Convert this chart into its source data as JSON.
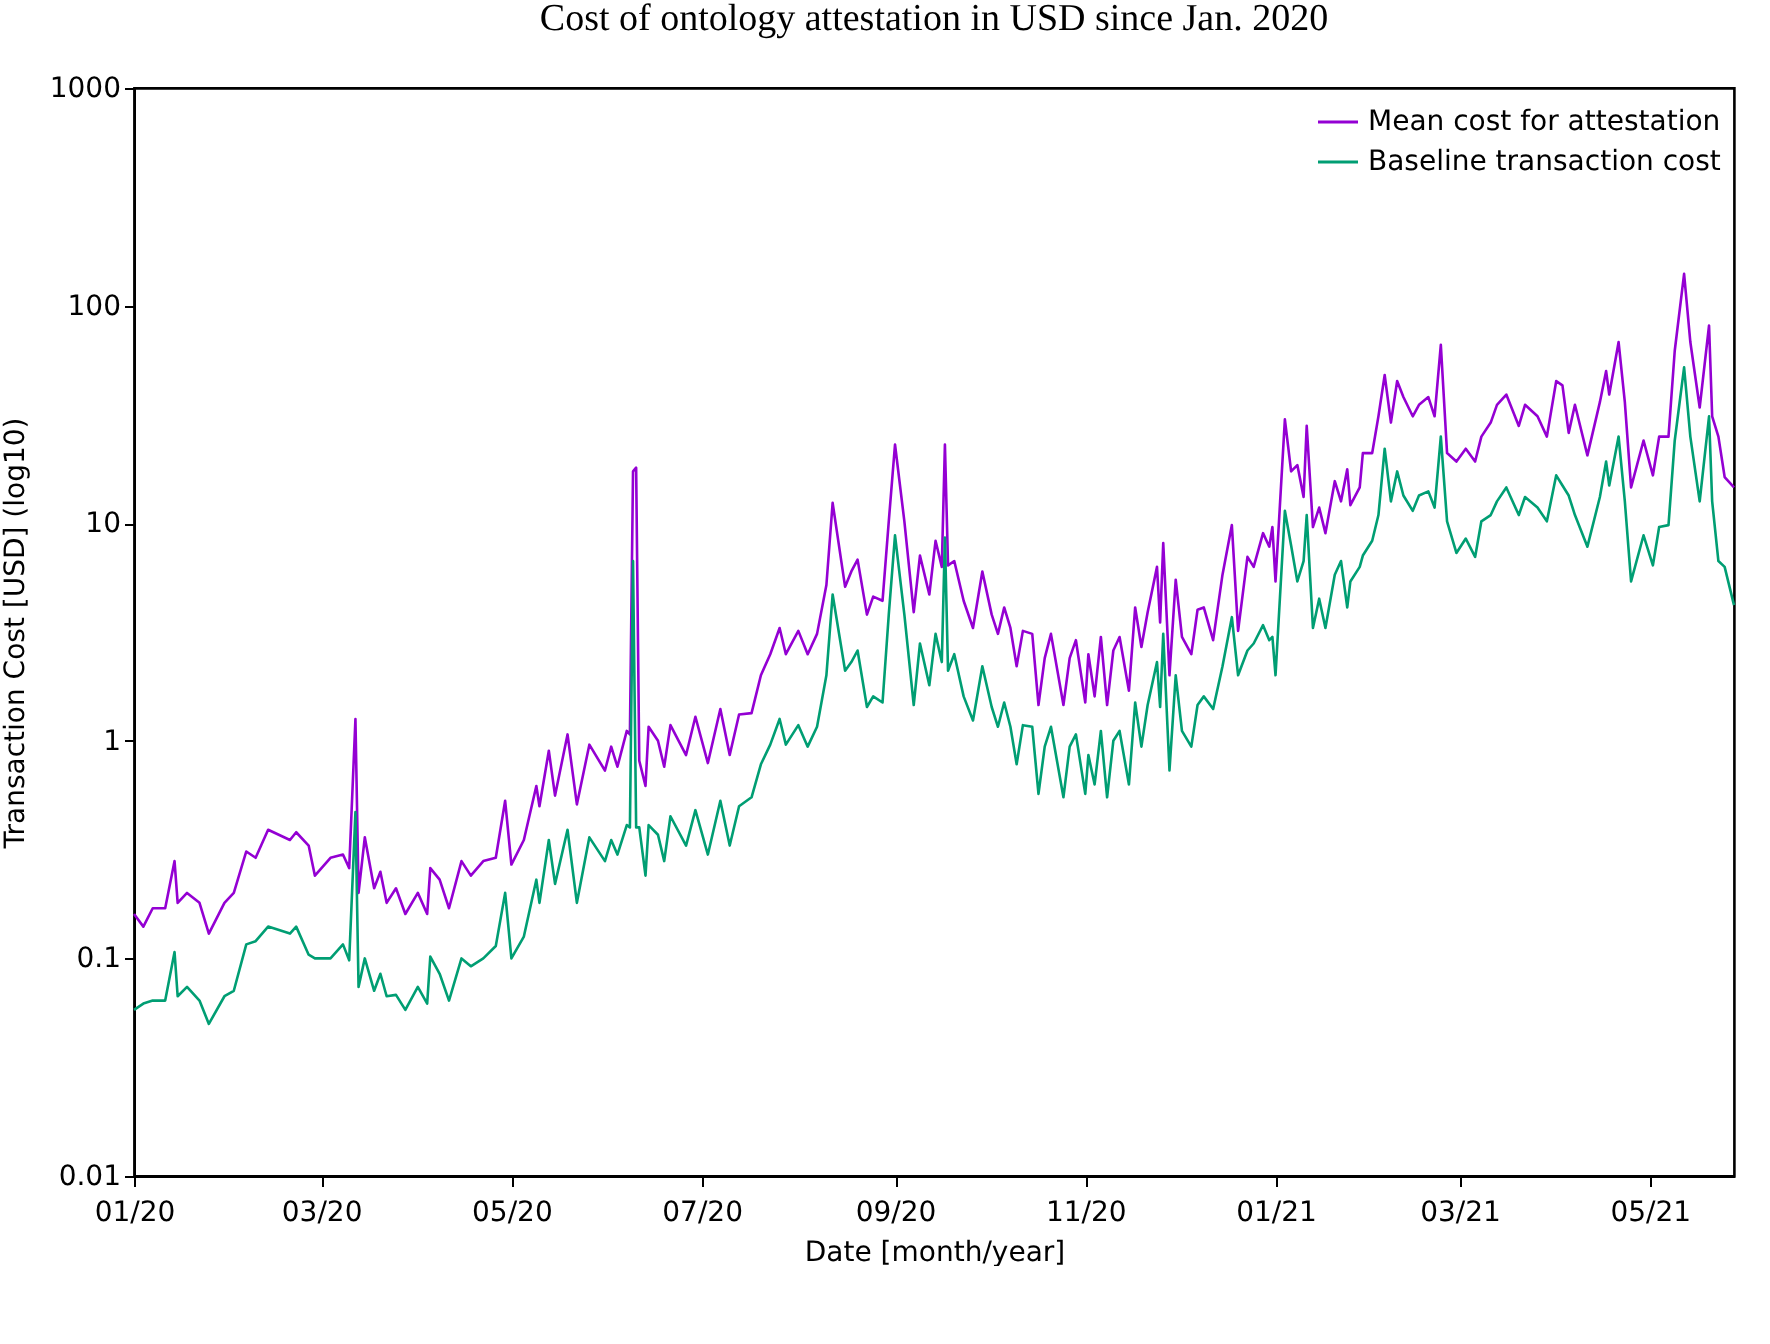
{
  "chart_data": {
    "type": "line",
    "title": "Cost of ontology attestation in USD since Jan. 2020",
    "xlabel": "Date [month/year]",
    "ylabel": "Transaction Cost [USD] (log10)",
    "log": "y",
    "legend": "top right",
    "xlim": [
      "2020-01-01",
      "2021-05-28"
    ],
    "xticks": [
      {
        "value": "2020-01-01",
        "label": "01/20"
      },
      {
        "value": "2020-03-01",
        "label": "03/20"
      },
      {
        "value": "2020-05-01",
        "label": "05/20"
      },
      {
        "value": "2020-07-01",
        "label": "07/20"
      },
      {
        "value": "2020-09-01",
        "label": "09/20"
      },
      {
        "value": "2020-11-01",
        "label": "11/20"
      },
      {
        "value": "2021-01-01",
        "label": "01/21"
      },
      {
        "value": "2021-03-01",
        "label": "03/21"
      },
      {
        "value": "2021-05-01",
        "label": "05/21"
      }
    ],
    "ylim": [
      0.01,
      1000
    ],
    "yticks": [
      0.01,
      0.1,
      1,
      10,
      100,
      1000
    ],
    "x": [
      "2020-01-01",
      "2020-01-04",
      "2020-01-07",
      "2020-01-11",
      "2020-01-14",
      "2020-01-15",
      "2020-01-18",
      "2020-01-22",
      "2020-01-25",
      "2020-01-30",
      "2020-02-02",
      "2020-02-06",
      "2020-02-09",
      "2020-02-13",
      "2020-02-20",
      "2020-02-22",
      "2020-02-26",
      "2020-02-28",
      "2020-03-04",
      "2020-03-08",
      "2020-03-10",
      "2020-03-12",
      "2020-03-13",
      "2020-03-15",
      "2020-03-18",
      "2020-03-20",
      "2020-03-22",
      "2020-03-25",
      "2020-03-28",
      "2020-04-01",
      "2020-04-04",
      "2020-04-05",
      "2020-04-08",
      "2020-04-11",
      "2020-04-15",
      "2020-04-18",
      "2020-04-22",
      "2020-04-26",
      "2020-04-29",
      "2020-05-01",
      "2020-05-05",
      "2020-05-09",
      "2020-05-10",
      "2020-05-13",
      "2020-05-15",
      "2020-05-19",
      "2020-05-22",
      "2020-05-26",
      "2020-05-31",
      "2020-06-02",
      "2020-06-04",
      "2020-06-07",
      "2020-06-08",
      "2020-06-09",
      "2020-06-10",
      "2020-06-11",
      "2020-06-13",
      "2020-06-14",
      "2020-06-17",
      "2020-06-19",
      "2020-06-21",
      "2020-06-26",
      "2020-06-29",
      "2020-07-03",
      "2020-07-07",
      "2020-07-10",
      "2020-07-13",
      "2020-07-17",
      "2020-07-20",
      "2020-07-23",
      "2020-07-26",
      "2020-07-28",
      "2020-08-01",
      "2020-08-04",
      "2020-08-07",
      "2020-08-10",
      "2020-08-12",
      "2020-08-16",
      "2020-08-18",
      "2020-08-20",
      "2020-08-23",
      "2020-08-25",
      "2020-08-28",
      "2020-08-30",
      "2020-09-01",
      "2020-09-04",
      "2020-09-07",
      "2020-09-09",
      "2020-09-12",
      "2020-09-14",
      "2020-09-16",
      "2020-09-17",
      "2020-09-18",
      "2020-09-20",
      "2020-09-23",
      "2020-09-26",
      "2020-09-29",
      "2020-10-02",
      "2020-10-04",
      "2020-10-06",
      "2020-10-08",
      "2020-10-10",
      "2020-10-12",
      "2020-10-15",
      "2020-10-17",
      "2020-10-19",
      "2020-10-21",
      "2020-10-25",
      "2020-10-27",
      "2020-10-29",
      "2020-11-01",
      "2020-11-02",
      "2020-11-04",
      "2020-11-06",
      "2020-11-08",
      "2020-11-10",
      "2020-11-12",
      "2020-11-15",
      "2020-11-17",
      "2020-11-19",
      "2020-11-21",
      "2020-11-24",
      "2020-11-25",
      "2020-11-26",
      "2020-11-28",
      "2020-11-30",
      "2020-12-02",
      "2020-12-05",
      "2020-12-07",
      "2020-12-09",
      "2020-12-12",
      "2020-12-15",
      "2020-12-18",
      "2020-12-20",
      "2020-12-23",
      "2020-12-25",
      "2020-12-28",
      "2020-12-30",
      "2020-12-31",
      "2021-01-01",
      "2021-01-04",
      "2021-01-06",
      "2021-01-08",
      "2021-01-10",
      "2021-01-11",
      "2021-01-13",
      "2021-01-15",
      "2021-01-17",
      "2021-01-20",
      "2021-01-22",
      "2021-01-24",
      "2021-01-25",
      "2021-01-28",
      "2021-01-29",
      "2021-02-01",
      "2021-02-03",
      "2021-02-05",
      "2021-02-07",
      "2021-02-09",
      "2021-02-11",
      "2021-02-14",
      "2021-02-16",
      "2021-02-19",
      "2021-02-21",
      "2021-02-23",
      "2021-02-25",
      "2021-02-28",
      "2021-03-03",
      "2021-03-06",
      "2021-03-08",
      "2021-03-11",
      "2021-03-13",
      "2021-03-16",
      "2021-03-20",
      "2021-03-22",
      "2021-03-26",
      "2021-03-29",
      "2021-04-01",
      "2021-04-03",
      "2021-04-05",
      "2021-04-07",
      "2021-04-11",
      "2021-04-15",
      "2021-04-17",
      "2021-04-18",
      "2021-04-21",
      "2021-04-23",
      "2021-04-25",
      "2021-04-29",
      "2021-05-02",
      "2021-05-04",
      "2021-05-07",
      "2021-05-09",
      "2021-05-12",
      "2021-05-14",
      "2021-05-17",
      "2021-05-20",
      "2021-05-21",
      "2021-05-23",
      "2021-05-25",
      "2021-05-28"
    ],
    "series": [
      {
        "name": "Mean cost for attestation",
        "color": "#9400d3",
        "values": [
          0.16,
          0.14,
          0.17,
          0.17,
          0.28,
          0.18,
          0.2,
          0.18,
          0.13,
          0.18,
          0.2,
          0.31,
          0.29,
          0.39,
          0.35,
          0.38,
          0.33,
          0.24,
          0.29,
          0.3,
          0.26,
          1.26,
          0.2,
          0.36,
          0.21,
          0.25,
          0.18,
          0.21,
          0.16,
          0.2,
          0.16,
          0.26,
          0.23,
          0.17,
          0.28,
          0.24,
          0.28,
          0.29,
          0.53,
          0.27,
          0.35,
          0.62,
          0.5,
          0.9,
          0.56,
          1.07,
          0.51,
          0.96,
          0.73,
          0.94,
          0.76,
          1.11,
          1.07,
          17.3,
          18,
          0.81,
          0.62,
          1.16,
          1.0,
          0.76,
          1.18,
          0.86,
          1.29,
          0.79,
          1.4,
          0.86,
          1.32,
          1.34,
          2.0,
          2.5,
          3.3,
          2.5,
          3.2,
          2.5,
          3.1,
          5.2,
          12.4,
          5.1,
          6.0,
          6.8,
          3.8,
          4.6,
          4.4,
          10.2,
          23,
          10.2,
          3.9,
          7.1,
          4.7,
          8.3,
          6.3,
          23,
          6.4,
          6.7,
          4.4,
          3.3,
          6.0,
          3.8,
          3.1,
          4.1,
          3.3,
          2.2,
          3.2,
          3.1,
          1.46,
          2.4,
          3.1,
          1.46,
          2.4,
          2.9,
          1.5,
          2.5,
          1.6,
          3.0,
          1.46,
          2.6,
          3.0,
          1.7,
          4.1,
          2.7,
          3.9,
          6.3,
          3.5,
          8.1,
          2.0,
          5.5,
          3.0,
          2.5,
          4.0,
          4.1,
          2.9,
          5.8,
          9.8,
          3.2,
          7.0,
          6.3,
          9.0,
          7.8,
          9.6,
          5.4,
          30,
          17.3,
          18.5,
          13.2,
          28,
          9.6,
          11.8,
          9.0,
          15.6,
          12.6,
          17.7,
          12.1,
          14.6,
          21,
          21,
          31,
          48,
          29,
          45,
          38,
          31,
          35,
          38,
          31,
          66,
          21,
          19.2,
          22,
          19.2,
          25,
          29,
          35,
          39,
          28,
          35,
          31,
          25,
          45,
          43,
          26,
          35,
          20.5,
          36,
          50,
          39,
          68,
          36,
          14.6,
          24,
          16.6,
          25,
          25,
          62,
          140,
          68,
          34,
          81,
          31,
          25,
          16.3,
          14.6
        ]
      },
      {
        "name": "Baseline transaction cost",
        "color": "#009e73",
        "values": [
          0.058,
          0.062,
          0.064,
          0.064,
          0.107,
          0.067,
          0.074,
          0.064,
          0.05,
          0.067,
          0.071,
          0.116,
          0.12,
          0.14,
          0.13,
          0.14,
          0.104,
          0.1,
          0.1,
          0.116,
          0.098,
          0.47,
          0.074,
          0.1,
          0.071,
          0.085,
          0.067,
          0.068,
          0.058,
          0.074,
          0.062,
          0.102,
          0.085,
          0.064,
          0.1,
          0.092,
          0.1,
          0.114,
          0.2,
          0.1,
          0.126,
          0.23,
          0.18,
          0.35,
          0.22,
          0.39,
          0.18,
          0.36,
          0.28,
          0.35,
          0.3,
          0.41,
          0.4,
          6.7,
          0.4,
          0.4,
          0.24,
          0.41,
          0.37,
          0.28,
          0.45,
          0.33,
          0.48,
          0.3,
          0.53,
          0.33,
          0.5,
          0.55,
          0.78,
          0.96,
          1.26,
          0.96,
          1.18,
          0.94,
          1.16,
          2.0,
          4.7,
          2.1,
          2.3,
          2.6,
          1.43,
          1.6,
          1.5,
          3.8,
          8.8,
          3.8,
          1.46,
          2.8,
          1.8,
          3.1,
          2.3,
          8.6,
          2.1,
          2.5,
          1.6,
          1.24,
          2.2,
          1.43,
          1.16,
          1.5,
          1.16,
          0.78,
          1.18,
          1.16,
          0.57,
          0.94,
          1.16,
          0.55,
          0.94,
          1.07,
          0.57,
          0.86,
          0.63,
          1.11,
          0.55,
          1.0,
          1.11,
          0.63,
          1.5,
          0.94,
          1.46,
          2.3,
          1.43,
          3.1,
          0.73,
          2.0,
          1.11,
          0.94,
          1.46,
          1.6,
          1.4,
          2.2,
          3.7,
          2.0,
          2.6,
          2.8,
          3.4,
          2.9,
          3.0,
          2.0,
          11.4,
          7.9,
          5.4,
          6.7,
          10.9,
          3.3,
          4.5,
          3.3,
          5.8,
          6.7,
          4.1,
          5.4,
          6.3,
          7.1,
          8.3,
          10.9,
          22,
          12.6,
          17.3,
          13.4,
          11.4,
          13.4,
          14,
          11.8,
          25,
          10.2,
          7.3,
          8.5,
          7.0,
          10.2,
          10.9,
          12.6,
          14.6,
          10.9,
          13.2,
          11.8,
          10.2,
          16.6,
          14.9,
          13.4,
          10.9,
          7.8,
          13.2,
          19.2,
          14.9,
          25,
          12.6,
          5.4,
          8.8,
          6.4,
          9.6,
          9.8,
          24,
          52,
          25,
          12.6,
          31,
          12.6,
          6.7,
          6.3,
          4.2
        ]
      }
    ]
  }
}
